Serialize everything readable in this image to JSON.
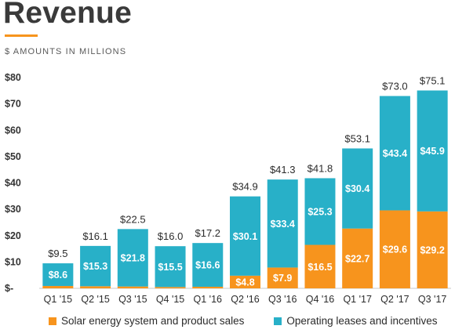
{
  "page": {
    "title": "Revenue",
    "subtitle": "$ AMOUNTS IN MILLIONS",
    "accent_color": "#f7941d"
  },
  "chart_data": {
    "type": "bar",
    "stacked": true,
    "title": "Revenue",
    "subtitle": "$ AMOUNTS IN MILLIONS",
    "xlabel": "",
    "ylabel": "",
    "ylim": [
      0,
      80
    ],
    "yticks": [
      0,
      10,
      20,
      30,
      40,
      50,
      60,
      70,
      80
    ],
    "ytick_labels": [
      "$-",
      "$10",
      "$20",
      "$30",
      "$40",
      "$50",
      "$60",
      "$70",
      "$80"
    ],
    "grid": false,
    "legend_position": "bottom",
    "categories": [
      "Q1 '15",
      "Q2 '15",
      "Q3 '15",
      "Q4 '15",
      "Q1 '16",
      "Q2 '16",
      "Q3 '16",
      "Q4 '16",
      "Q1 '17",
      "Q2 '17",
      "Q3 '17"
    ],
    "series": [
      {
        "name": "Solar energy system and product sales",
        "color": "#f7941d",
        "values": [
          0.9,
          0.8,
          0.7,
          0.5,
          0.6,
          4.8,
          7.9,
          16.5,
          22.7,
          29.6,
          29.2
        ],
        "labels": [
          "",
          "",
          "",
          "",
          "",
          "$4.8",
          "$7.9",
          "$16.5",
          "$22.7",
          "$29.6",
          "$29.2"
        ]
      },
      {
        "name": "Operating leases and incentives",
        "color": "#28b0c8",
        "values": [
          8.6,
          15.3,
          21.8,
          15.5,
          16.6,
          30.1,
          33.4,
          25.3,
          30.4,
          43.4,
          45.9
        ],
        "labels": [
          "$8.6",
          "$15.3",
          "$21.8",
          "$15.5",
          "$16.6",
          "$30.1",
          "$33.4",
          "$25.3",
          "$30.4",
          "$43.4",
          "$45.9"
        ]
      }
    ],
    "totals": [
      9.5,
      16.1,
      22.5,
      16.0,
      17.2,
      34.9,
      41.3,
      41.8,
      53.1,
      73.0,
      75.1
    ],
    "total_labels": [
      "$9.5",
      "$16.1",
      "$22.5",
      "$16.0",
      "$17.2",
      "$34.9",
      "$41.3",
      "$41.8",
      "$53.1",
      "$73.0",
      "$75.1"
    ]
  }
}
